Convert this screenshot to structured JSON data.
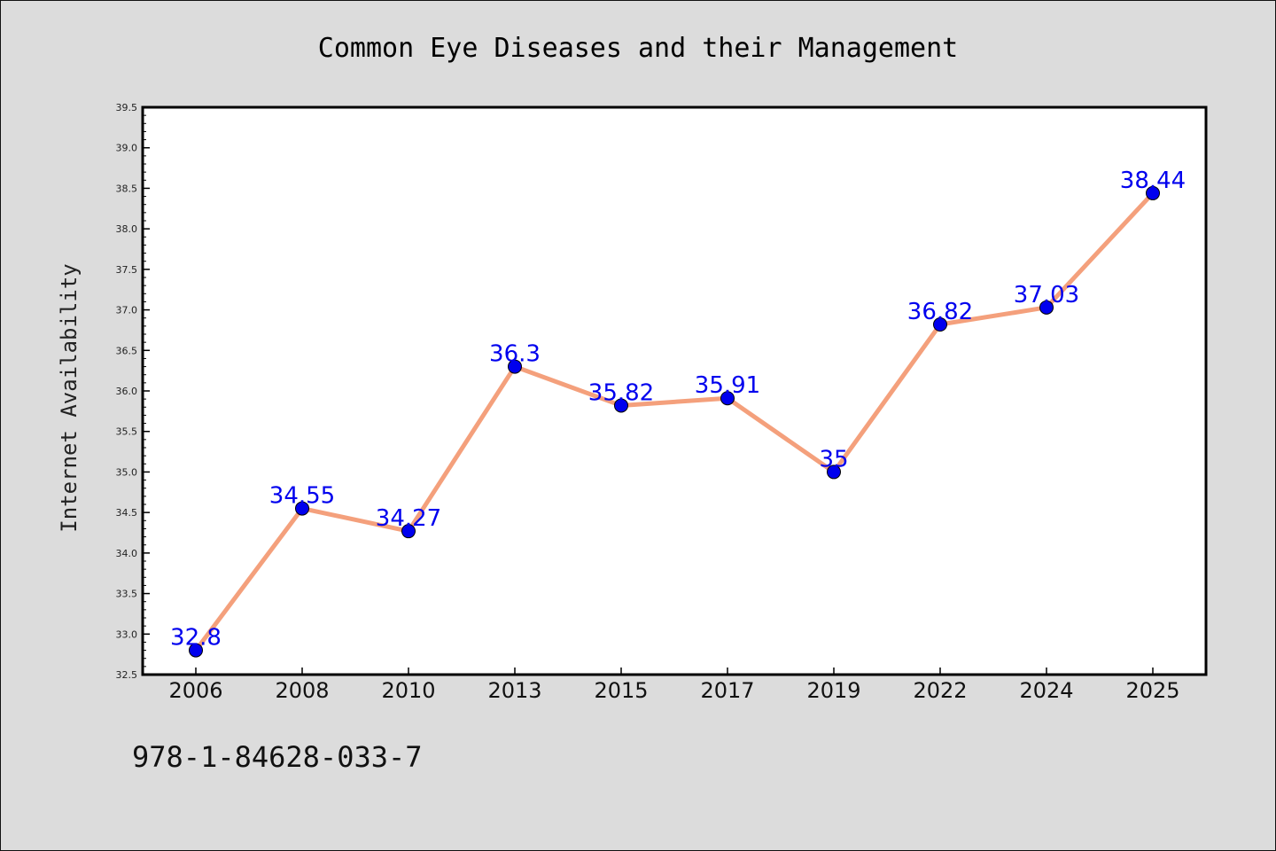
{
  "chart_data": {
    "type": "line",
    "title": "Common Eye Diseases and their Management",
    "ylabel": "Internet Availability",
    "xlabel": "",
    "categories": [
      "2006",
      "2008",
      "2010",
      "2013",
      "2015",
      "2017",
      "2019",
      "2022",
      "2024",
      "2025"
    ],
    "values": [
      32.8,
      34.55,
      34.27,
      36.3,
      35.82,
      35.91,
      35,
      36.82,
      37.03,
      38.44
    ],
    "data_labels": [
      "32.8",
      "34.55",
      "34.27",
      "36.3",
      "35.82",
      "35.91",
      "35",
      "36.82",
      "37.03",
      "38.44"
    ],
    "ylim": [
      32.5,
      39.5
    ],
    "yticks": [
      "32.5",
      "33.0",
      "33.5",
      "34.0",
      "34.5",
      "35.0",
      "35.5",
      "36.0",
      "36.5",
      "37.0",
      "37.5",
      "38.0",
      "38.5",
      "39.0",
      "39.5"
    ],
    "grid": false,
    "line_color": "#f4a07c",
    "marker_color": "#0000ee",
    "label_color": "#0000ee"
  },
  "footer": {
    "isbn": "978-1-84628-033-7"
  }
}
